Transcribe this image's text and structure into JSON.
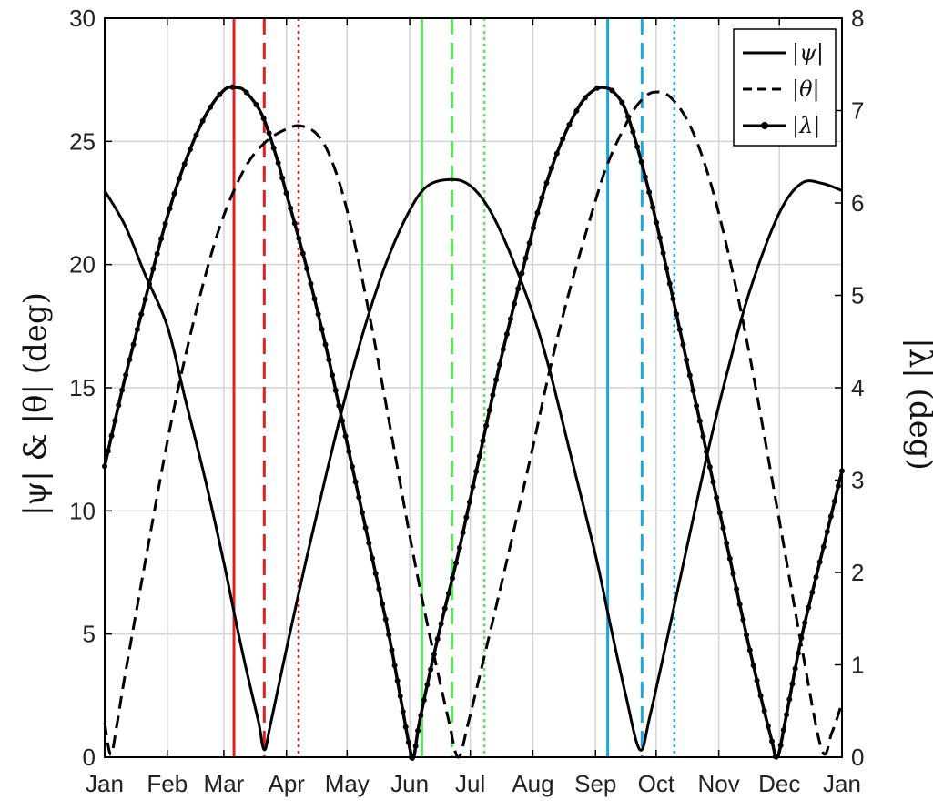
{
  "chart_data": {
    "type": "line",
    "title": "",
    "xlabel": "",
    "ylabel_left": "|ψ| & |θ| (deg)",
    "ylabel_right": "|λ| (deg)",
    "xlim_days": [
      0,
      365
    ],
    "ylim_left": [
      0,
      30
    ],
    "ylim_right": [
      0,
      8
    ],
    "grid": true,
    "legend_position": "top-right",
    "x_ticks": [
      {
        "day": 0,
        "label": "Jan"
      },
      {
        "day": 31,
        "label": "Feb"
      },
      {
        "day": 59,
        "label": "Mar"
      },
      {
        "day": 90,
        "label": "Apr"
      },
      {
        "day": 120,
        "label": "May"
      },
      {
        "day": 151,
        "label": "Jun"
      },
      {
        "day": 181,
        "label": "Jul"
      },
      {
        "day": 212,
        "label": "Aug"
      },
      {
        "day": 243,
        "label": "Sep"
      },
      {
        "day": 273,
        "label": "Oct"
      },
      {
        "day": 304,
        "label": "Nov"
      },
      {
        "day": 334,
        "label": "Dec"
      },
      {
        "day": 365,
        "label": "Jan"
      }
    ],
    "y_ticks_left": [
      0,
      5,
      10,
      15,
      20,
      25,
      30
    ],
    "y_ticks_right": [
      0,
      1,
      2,
      3,
      4,
      5,
      6,
      7,
      8
    ],
    "series": [
      {
        "name": "|ψ|",
        "axis": "left",
        "style": "solid",
        "color": "#000000",
        "points": [
          [
            0,
            23.0
          ],
          [
            10,
            21.6
          ],
          [
            20,
            19.6
          ],
          [
            31,
            17.5
          ],
          [
            40,
            14.5
          ],
          [
            50,
            11.2
          ],
          [
            59,
            7.9
          ],
          [
            65,
            5.5
          ],
          [
            70,
            3.6
          ],
          [
            76,
            1.5
          ],
          [
            79,
            0.3
          ],
          [
            82,
            1.3
          ],
          [
            90,
            4.4
          ],
          [
            100,
            8.1
          ],
          [
            110,
            11.6
          ],
          [
            120,
            14.9
          ],
          [
            130,
            17.8
          ],
          [
            140,
            20.2
          ],
          [
            151,
            22.2
          ],
          [
            160,
            23.2
          ],
          [
            172,
            23.45
          ],
          [
            181,
            23.2
          ],
          [
            190,
            22.3
          ],
          [
            200,
            20.6
          ],
          [
            212,
            18.0
          ],
          [
            220,
            15.8
          ],
          [
            230,
            12.5
          ],
          [
            243,
            8.2
          ],
          [
            250,
            5.5
          ],
          [
            258,
            2.5
          ],
          [
            265,
            0.3
          ],
          [
            270,
            1.7
          ],
          [
            280,
            5.4
          ],
          [
            290,
            9.2
          ],
          [
            300,
            12.9
          ],
          [
            310,
            16.2
          ],
          [
            320,
            19.1
          ],
          [
            334,
            22.1
          ],
          [
            345,
            23.3
          ],
          [
            355,
            23.3
          ],
          [
            365,
            23.0
          ]
        ]
      },
      {
        "name": "|θ|",
        "axis": "left",
        "style": "dashed",
        "color": "#000000",
        "points": [
          [
            0,
            1.4
          ],
          [
            3,
            0.1
          ],
          [
            6,
            1.3
          ],
          [
            10,
            3.3
          ],
          [
            20,
            7.9
          ],
          [
            31,
            12.8
          ],
          [
            40,
            16.3
          ],
          [
            50,
            19.6
          ],
          [
            59,
            22.0
          ],
          [
            70,
            24.0
          ],
          [
            80,
            25.0
          ],
          [
            90,
            25.5
          ],
          [
            97,
            25.63
          ],
          [
            105,
            25.3
          ],
          [
            112,
            24.3
          ],
          [
            120,
            22.2
          ],
          [
            130,
            18.4
          ],
          [
            140,
            14.0
          ],
          [
            151,
            9.0
          ],
          [
            160,
            5.3
          ],
          [
            170,
            1.6
          ],
          [
            175,
            0.0
          ],
          [
            180,
            1.4
          ],
          [
            190,
            4.8
          ],
          [
            200,
            8.3
          ],
          [
            212,
            12.6
          ],
          [
            220,
            15.6
          ],
          [
            230,
            18.9
          ],
          [
            243,
            22.6
          ],
          [
            250,
            24.3
          ],
          [
            260,
            26.0
          ],
          [
            266,
            26.7
          ],
          [
            272,
            27.0
          ],
          [
            280,
            26.8
          ],
          [
            290,
            25.6
          ],
          [
            300,
            23.3
          ],
          [
            310,
            20.0
          ],
          [
            320,
            16.0
          ],
          [
            334,
            9.6
          ],
          [
            345,
            4.5
          ],
          [
            355,
            0.3
          ],
          [
            360,
            1.0
          ],
          [
            365,
            2.2
          ]
        ]
      },
      {
        "name": "|λ|",
        "axis": "right",
        "style": "solid-dot",
        "color": "#000000",
        "points": [
          [
            0,
            3.15
          ],
          [
            10,
            4.1
          ],
          [
            20,
            4.95
          ],
          [
            31,
            5.85
          ],
          [
            40,
            6.45
          ],
          [
            50,
            6.95
          ],
          [
            59,
            7.22
          ],
          [
            65,
            7.25
          ],
          [
            70,
            7.2
          ],
          [
            78,
            6.95
          ],
          [
            85,
            6.5
          ],
          [
            90,
            6.1
          ],
          [
            100,
            5.3
          ],
          [
            110,
            4.4
          ],
          [
            120,
            3.4
          ],
          [
            130,
            2.4
          ],
          [
            140,
            1.4
          ],
          [
            146,
            0.7
          ],
          [
            151,
            0.1
          ],
          [
            153,
            0.0
          ],
          [
            156,
            0.4
          ],
          [
            165,
            1.3
          ],
          [
            175,
            2.2
          ],
          [
            185,
            3.2
          ],
          [
            195,
            4.2
          ],
          [
            205,
            5.1
          ],
          [
            215,
            5.95
          ],
          [
            225,
            6.6
          ],
          [
            235,
            7.05
          ],
          [
            242,
            7.22
          ],
          [
            247,
            7.25
          ],
          [
            252,
            7.2
          ],
          [
            258,
            7.0
          ],
          [
            265,
            6.5
          ],
          [
            273,
            5.8
          ],
          [
            280,
            5.1
          ],
          [
            290,
            4.1
          ],
          [
            300,
            3.1
          ],
          [
            310,
            2.1
          ],
          [
            320,
            1.1
          ],
          [
            330,
            0.2
          ],
          [
            333,
            0.0
          ],
          [
            337,
            0.4
          ],
          [
            345,
            1.3
          ],
          [
            355,
            2.2
          ],
          [
            365,
            3.1
          ]
        ]
      }
    ],
    "vertical_markers": [
      {
        "day": 64,
        "style": "solid",
        "color": "#e0201e"
      },
      {
        "day": 79,
        "style": "dashed",
        "color": "#e0201e"
      },
      {
        "day": 96,
        "style": "dotted",
        "color": "#e0201e"
      },
      {
        "day": 157,
        "style": "solid",
        "color": "#5ce65c"
      },
      {
        "day": 172,
        "style": "dashed",
        "color": "#5ce65c"
      },
      {
        "day": 188,
        "style": "dotted",
        "color": "#5ce65c"
      },
      {
        "day": 249,
        "style": "solid",
        "color": "#1aa7e0"
      },
      {
        "day": 266,
        "style": "dashed",
        "color": "#1aa7e0"
      },
      {
        "day": 282,
        "style": "dotted",
        "color": "#1aa7e0"
      }
    ],
    "legend": [
      {
        "label": "|ψ|",
        "style": "solid"
      },
      {
        "label": "|θ|",
        "style": "dashed"
      },
      {
        "label": "|λ|",
        "style": "solid-dot"
      }
    ]
  }
}
